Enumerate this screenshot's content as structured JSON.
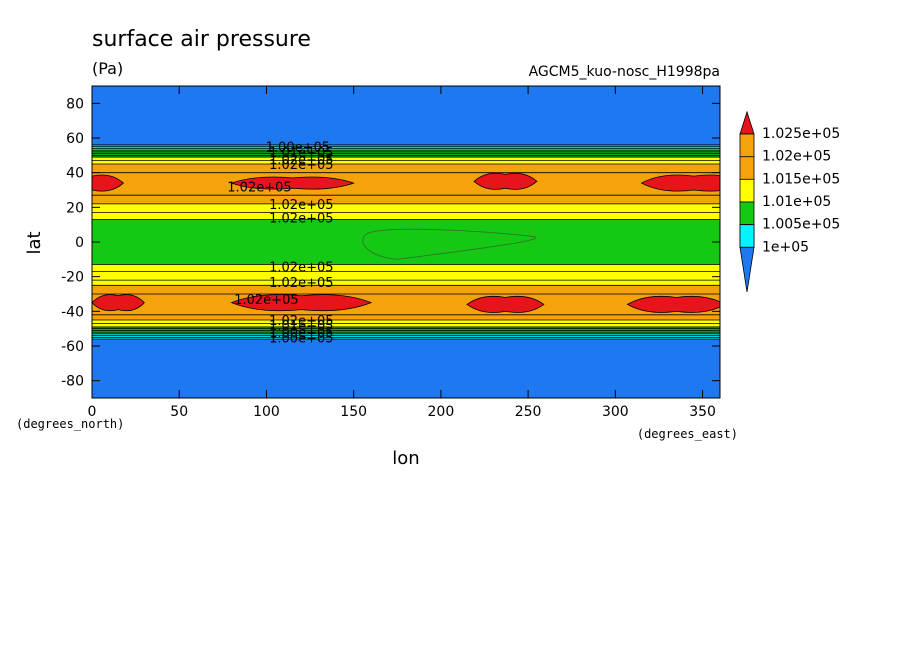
{
  "chart_data": {
    "type": "heatmap",
    "title": "surface air pressure",
    "units": "(Pa)",
    "run_label": "AGCM5_kuo-nosc_H1998pa",
    "xlabel": "lon",
    "ylabel": "lat",
    "x_unit": "(degrees_east)",
    "y_unit": "(degrees_north)",
    "xlim": [
      0,
      360
    ],
    "ylim": [
      -90,
      90
    ],
    "x_ticks": [
      0,
      50,
      100,
      150,
      200,
      250,
      300,
      350
    ],
    "y_ticks": [
      80,
      60,
      40,
      20,
      0,
      -20,
      -40,
      -60,
      -80
    ],
    "levels": [
      100000,
      100500,
      101000,
      101500,
      102000,
      102500
    ],
    "colorbar": [
      {
        "label": "1.025e+05",
        "color": "#e8141c"
      },
      {
        "label": "1.02e+05",
        "color": "#f5a30a"
      },
      {
        "label": "1.015e+05",
        "color": "#ffff00"
      },
      {
        "label": "1.01e+05",
        "color": "#14c814"
      },
      {
        "label": "1.005e+05",
        "color": "#00f5ff"
      },
      {
        "label": "1e+05",
        "color": "#1e78f0"
      }
    ],
    "bands_north_to_south": [
      {
        "lat_from": 90,
        "lat_to": 56,
        "color": "#1e78f0"
      },
      {
        "lat_from": 56,
        "lat_to": 53,
        "color": "#00f5ff"
      },
      {
        "lat_from": 53,
        "lat_to": 49,
        "color": "#14c814"
      },
      {
        "lat_from": 49,
        "lat_to": 45,
        "color": "#ffff00"
      },
      {
        "lat_from": 45,
        "lat_to": 22,
        "color": "#f5a30a"
      },
      {
        "lat_from": 22,
        "lat_to": 13,
        "color": "#ffff00"
      },
      {
        "lat_from": 13,
        "lat_to": -13,
        "color": "#14c814"
      },
      {
        "lat_from": -13,
        "lat_to": -25,
        "color": "#ffff00"
      },
      {
        "lat_from": -25,
        "lat_to": -45,
        "color": "#f5a30a"
      },
      {
        "lat_from": -45,
        "lat_to": -49,
        "color": "#ffff00"
      },
      {
        "lat_from": -49,
        "lat_to": -53,
        "color": "#14c814"
      },
      {
        "lat_from": -53,
        "lat_to": -56,
        "color": "#00f5ff"
      },
      {
        "lat_from": -56,
        "lat_to": -90,
        "color": "#1e78f0"
      }
    ],
    "high_cells": [
      {
        "lon_center": 0,
        "lat_center": 34,
        "lon_halfwidth": 18,
        "lat_halfwidth": 4
      },
      {
        "lon_center": 115,
        "lat_center": 34,
        "lon_halfwidth": 35,
        "lat_halfwidth": 3
      },
      {
        "lon_center": 237,
        "lat_center": 35,
        "lon_halfwidth": 18,
        "lat_halfwidth": 4
      },
      {
        "lon_center": 345,
        "lat_center": 34,
        "lon_halfwidth": 30,
        "lat_halfwidth": 4
      },
      {
        "lon_center": 15,
        "lat_center": -35,
        "lon_halfwidth": 15,
        "lat_halfwidth": 4
      },
      {
        "lon_center": 120,
        "lat_center": -35,
        "lon_halfwidth": 40,
        "lat_halfwidth": 4
      },
      {
        "lon_center": 237,
        "lat_center": -36,
        "lon_halfwidth": 22,
        "lat_halfwidth": 4
      },
      {
        "lon_center": 335,
        "lat_center": -36,
        "lon_halfwidth": 28,
        "lat_halfwidth": 4
      }
    ],
    "contour_labels": [
      {
        "text": "1.00e+05",
        "lon": 118,
        "lat": 55
      },
      {
        "text": "1.01e+05",
        "lon": 120,
        "lat": 52
      },
      {
        "text": "1.02e+05",
        "lon": 120,
        "lat": 48
      },
      {
        "text": "1.02e+05",
        "lon": 120,
        "lat": 45
      },
      {
        "text": "1.02e+05",
        "lon": 96,
        "lat": 32
      },
      {
        "text": "1.02e+05",
        "lon": 120,
        "lat": 22
      },
      {
        "text": "1.02e+05",
        "lon": 120,
        "lat": 14
      },
      {
        "text": "1.02e+05",
        "lon": 120,
        "lat": -14
      },
      {
        "text": "1.02e+05",
        "lon": 120,
        "lat": -23
      },
      {
        "text": "1.02e+05",
        "lon": 100,
        "lat": -33
      },
      {
        "text": "1.02e+05",
        "lon": 120,
        "lat": -45
      },
      {
        "text": "1.01e+05",
        "lon": 120,
        "lat": -48
      },
      {
        "text": "1.00e+05",
        "lon": 120,
        "lat": -52
      },
      {
        "text": "1.00e+05",
        "lon": 120,
        "lat": -55
      }
    ]
  }
}
